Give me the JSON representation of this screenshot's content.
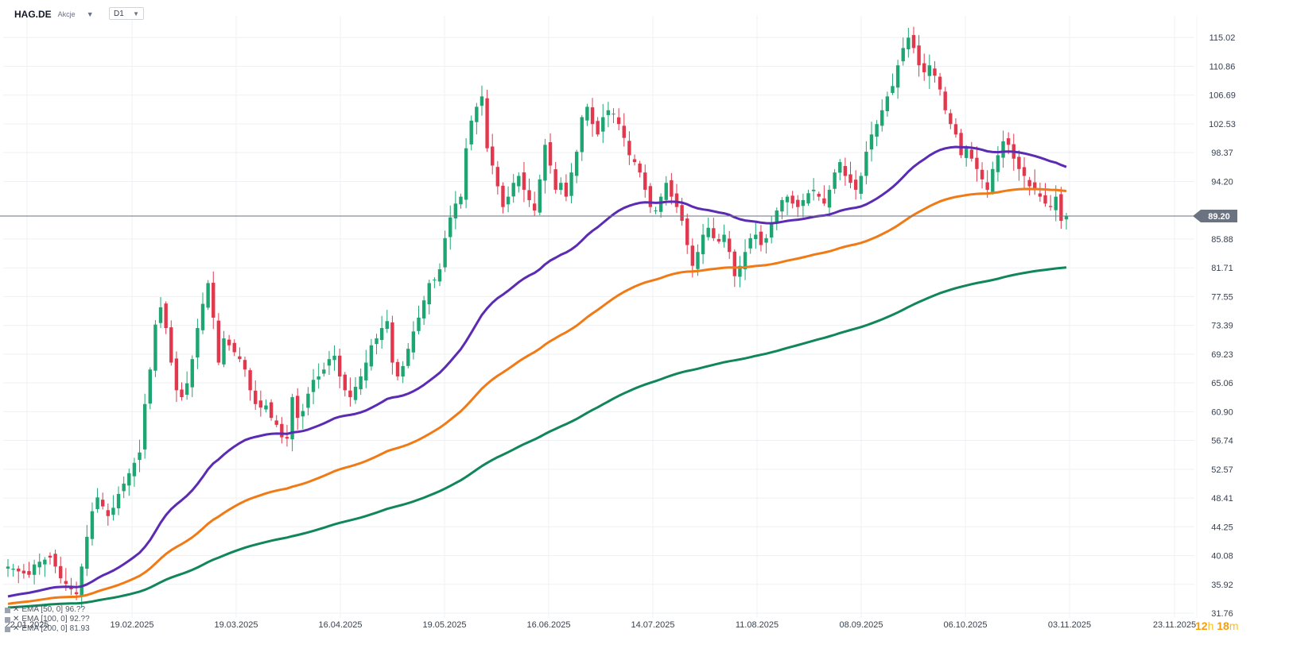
{
  "header": {
    "symbol": "HAG.DE",
    "instrument_type": "Akcje",
    "timeframe": "D1"
  },
  "current_price_label": "89.20",
  "countdown": {
    "hours": "12",
    "hours_unit": "h",
    "minutes": "18",
    "minutes_unit": "m"
  },
  "legend": [
    {
      "label": "EMA [50, 0]",
      "value": "96.??",
      "color": "#5b2bb3"
    },
    {
      "label": "EMA [100, 0]",
      "value": "92.??",
      "color": "#f07b16"
    },
    {
      "label": "EMA [200, 0]",
      "value": "81.93",
      "color": "#11865a"
    }
  ],
  "colors": {
    "up": "#1ea672",
    "down": "#e2384e",
    "ema50": "#5b2bb3",
    "ema100": "#f07b16",
    "ema200": "#11865a",
    "priceline": "#6b7280"
  },
  "chart_data": {
    "type": "candlestick",
    "title": "HAG.DE D1",
    "ylim": [
      31.76,
      117.0
    ],
    "y_ticks": [
      "115.02",
      "110.86",
      "106.69",
      "102.53",
      "98.37",
      "94.20",
      "89.20",
      "85.88",
      "81.71",
      "77.55",
      "73.39",
      "69.23",
      "65.06",
      "60.90",
      "56.74",
      "52.57",
      "48.41",
      "44.25",
      "40.08",
      "35.92",
      "31.76"
    ],
    "x_ticks": [
      "22.01.2025",
      "19.02.2025",
      "19.03.2025",
      "16.04.2025",
      "19.05.2025",
      "16.06.2025",
      "14.07.2025",
      "11.08.2025",
      "08.09.2025",
      "06.10.2025",
      "03.11.2025",
      "23.11.2025"
    ],
    "close": [
      38.5,
      38.2,
      37.8,
      37.5,
      37.3,
      38.8,
      39.2,
      39.5,
      39.8,
      38.5,
      36.8,
      36.0,
      35.2,
      34.5,
      38.5,
      42.8,
      46.5,
      48.5,
      47.2,
      45.8,
      47.0,
      49.0,
      50.5,
      52.0,
      53.5,
      55.0,
      62.0,
      67.0,
      73.5,
      76.0,
      73.0,
      68.0,
      64.0,
      63.0,
      65.0,
      68.5,
      73.0,
      76.5,
      79.5,
      74.5,
      68.0,
      71.5,
      70.5,
      69.5,
      68.5,
      67.0,
      64.0,
      62.0,
      61.5,
      61.8,
      60.0,
      59.0,
      57.2,
      57.0,
      63.0,
      60.0,
      61.0,
      63.5,
      65.5,
      66.0,
      67.0,
      68.5,
      69.0,
      66.0,
      64.0,
      63.0,
      64.5,
      66.0,
      68.0,
      70.5,
      71.5,
      73.0,
      74.0,
      68.0,
      66.0,
      67.5,
      70.0,
      72.5,
      74.5,
      77.0,
      79.5,
      80.0,
      81.5,
      86.0,
      89.0,
      91.0,
      92.0,
      99.0,
      103.0,
      105.0,
      106.5,
      99.0,
      96.5,
      93.5,
      90.5,
      92.0,
      94.0,
      95.0,
      93.0,
      91.5,
      90.0,
      94.5,
      99.5,
      96.5,
      93.0,
      94.0,
      92.0,
      95.5,
      98.5,
      103.5,
      105.0,
      102.5,
      101.0,
      103.5,
      104.5,
      104.0,
      102.5,
      100.5,
      98.0,
      97.0,
      95.5,
      93.0,
      90.5,
      90.0,
      92.0,
      94.0,
      92.0,
      90.5,
      88.5,
      85.0,
      82.0,
      84.0,
      86.5,
      87.5,
      86.0,
      85.5,
      86.5,
      84.0,
      80.5,
      82.0,
      84.0,
      86.0,
      86.5,
      85.0,
      86.0,
      88.0,
      90.0,
      91.5,
      92.0,
      91.0,
      90.5,
      91.5,
      92.5,
      93.0,
      92.0,
      91.0,
      93.0,
      95.5,
      97.0,
      95.0,
      94.0,
      93.0,
      95.0,
      98.5,
      101.0,
      102.5,
      104.5,
      106.5,
      108.0,
      111.0,
      113.5,
      115.0,
      113.5,
      111.0,
      110.0,
      111.0,
      109.5,
      107.5,
      104.5,
      102.5,
      101.0,
      98.0,
      99.0,
      97.5,
      96.0,
      94.5,
      93.0,
      96.0,
      98.0,
      100.0,
      99.5,
      97.5,
      96.0,
      95.0,
      93.5,
      93.0,
      92.0,
      91.0,
      90.5,
      92.0,
      88.5,
      89.2
    ],
    "series": [
      {
        "name": "EMA [50, 0]",
        "color": "#5b2bb3"
      },
      {
        "name": "EMA [100, 0]",
        "color": "#f07b16"
      },
      {
        "name": "EMA [200, 0]",
        "color": "#11865a"
      }
    ],
    "ema_end_values": {
      "EMA [50, 0]": 96.2,
      "EMA [100, 0]": 92.6,
      "EMA [200, 0]": 81.93
    }
  }
}
